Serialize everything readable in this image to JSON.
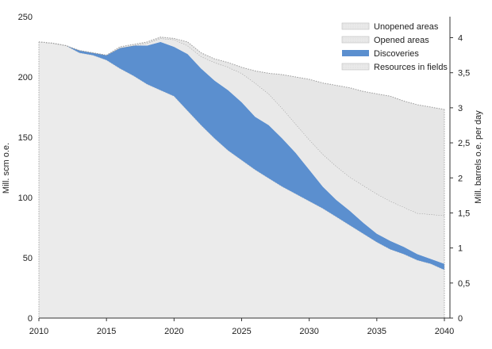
{
  "chart_data": {
    "type": "area",
    "title": "",
    "xlabel": "",
    "ylabel_left": "Mill. scm o.e.",
    "ylabel_right": "Mill. barrels o.e. per day",
    "xlim": [
      2010,
      2040
    ],
    "ylim_left": [
      0,
      250
    ],
    "ylim_right": [
      0,
      4.3
    ],
    "x_ticks": [
      2010,
      2015,
      2020,
      2025,
      2030,
      2035,
      2040
    ],
    "x_tick_labels": [
      "2010",
      "2015",
      "2020",
      "2025",
      "2030",
      "2035",
      "2040"
    ],
    "y_left_ticks": [
      0,
      50,
      100,
      150,
      200,
      250
    ],
    "y_left_tick_labels": [
      "0",
      "50",
      "100",
      "150",
      "200",
      "250"
    ],
    "y_right_ticks": [
      0,
      0.5,
      1,
      1.5,
      2,
      2.5,
      3,
      3.5,
      4
    ],
    "y_right_tick_labels": [
      "0",
      "0,5",
      "1",
      "1,5",
      "2",
      "2,5",
      "3",
      "3,5",
      "4"
    ],
    "stacked": true,
    "legend_position": "top-right",
    "x": [
      2010,
      2011,
      2012,
      2013,
      2014,
      2015,
      2016,
      2017,
      2018,
      2019,
      2020,
      2021,
      2022,
      2023,
      2024,
      2025,
      2026,
      2027,
      2028,
      2029,
      2030,
      2031,
      2032,
      2033,
      2034,
      2035,
      2036,
      2037,
      2038,
      2039,
      2040
    ],
    "series": [
      {
        "name": "Resources in fields",
        "color": "#ebebeb",
        "cumulative_top": [
          229,
          228,
          226,
          220,
          218,
          214,
          207,
          201,
          194,
          189,
          184,
          172,
          160,
          149,
          139,
          131,
          123,
          116,
          109,
          103,
          97,
          91,
          84,
          77,
          70,
          63,
          57,
          53,
          48,
          45,
          40
        ]
      },
      {
        "name": "Discoveries",
        "color": "#5b8fcf",
        "cumulative_top": [
          229,
          228,
          226,
          222,
          220,
          218,
          224,
          226,
          226,
          229,
          225,
          219,
          207,
          197,
          189,
          179,
          167,
          160,
          149,
          137,
          123,
          109,
          98,
          89,
          79,
          70,
          64,
          59,
          53,
          49,
          45
        ]
      },
      {
        "name": "Opened areas",
        "color": "#e9e9e9",
        "cumulative_top": [
          229,
          228,
          226,
          222,
          220,
          218,
          224,
          226,
          228,
          232,
          231,
          226,
          217,
          212,
          208,
          203,
          195,
          186,
          174,
          161,
          148,
          136,
          126,
          117,
          110,
          103,
          97,
          92,
          87,
          86,
          85
        ]
      },
      {
        "name": "Unopened areas",
        "color": "#e6e6e6",
        "cumulative_top": [
          229,
          228,
          226,
          222,
          220,
          218,
          225,
          227,
          229,
          233,
          232,
          229,
          220,
          215,
          212,
          208,
          205,
          203,
          202,
          200,
          198,
          195,
          193,
          191,
          188,
          186,
          184,
          180,
          177,
          175,
          173
        ]
      }
    ],
    "legend": [
      {
        "label": "Unopened areas",
        "swatch": "#ececec"
      },
      {
        "label": "Opened areas",
        "swatch": "#e6e6e6"
      },
      {
        "label": "Discoveries",
        "swatch": "#5b8fcf"
      },
      {
        "label": "Resources in fields",
        "swatch": "#e9e9e9"
      }
    ]
  }
}
